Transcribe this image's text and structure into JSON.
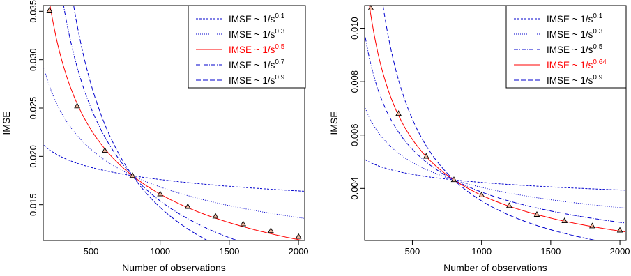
{
  "chart_data": [
    {
      "type": "line",
      "title": "",
      "xlabel": "Number of observations",
      "ylabel": "IMSE",
      "xlim": [
        155,
        2045
      ],
      "ylim": [
        0.0113,
        0.0356
      ],
      "xticks": [
        500,
        1000,
        1500,
        2000
      ],
      "xtick_labels": [
        "500",
        "1000",
        "1500",
        "2000"
      ],
      "yticks": [
        0.015,
        0.02,
        0.025,
        0.03,
        0.035
      ],
      "ytick_labels": [
        "0.015",
        "0.020",
        "0.025",
        "0.030",
        "0.035"
      ],
      "legend_position": "top-right",
      "legend": [
        {
          "text": "IMSE ~ 1/s",
          "exponent": "0.1",
          "color": "#0000cd",
          "dash": "3,2",
          "highlight": false
        },
        {
          "text": "IMSE ~ 1/s",
          "exponent": "0.3",
          "color": "#0000cd",
          "dash": "1,2",
          "highlight": false
        },
        {
          "text": "IMSE ~ 1/s",
          "exponent": "0.5",
          "color": "#ff0000",
          "dash": "",
          "highlight": true
        },
        {
          "text": "IMSE ~ 1/s",
          "exponent": "0.7",
          "color": "#0000cd",
          "dash": "6,2,1,2",
          "highlight": false
        },
        {
          "text": "IMSE ~ 1/s",
          "exponent": "0.9",
          "color": "#0000cd",
          "dash": "7,3",
          "highlight": false
        }
      ],
      "points": {
        "x": [
          200,
          400,
          600,
          800,
          1000,
          1200,
          1400,
          1600,
          1800,
          2000
        ],
        "y": [
          0.0351,
          0.0252,
          0.0206,
          0.018,
          0.0161,
          0.0148,
          0.0138,
          0.013,
          0.0123,
          0.0117
        ]
      }
    },
    {
      "type": "line",
      "title": "",
      "xlabel": "Number of observations",
      "ylabel": "IMSE",
      "xlim": [
        155,
        2045
      ],
      "ylim": [
        0.00205,
        0.01085
      ],
      "xticks": [
        500,
        1000,
        1500,
        2000
      ],
      "xtick_labels": [
        "500",
        "1000",
        "1500",
        "2000"
      ],
      "yticks": [
        0.004,
        0.006,
        0.008,
        0.01
      ],
      "ytick_labels": [
        "0.004",
        "0.006",
        "0.008",
        "0.010"
      ],
      "legend_position": "top-right",
      "legend": [
        {
          "text": "IMSE ~ 1/s",
          "exponent": "0.1",
          "color": "#0000cd",
          "dash": "3,2",
          "highlight": false
        },
        {
          "text": "IMSE ~ 1/s",
          "exponent": "0.3",
          "color": "#0000cd",
          "dash": "1,2",
          "highlight": false
        },
        {
          "text": "IMSE ~ 1/s",
          "exponent": "0.5",
          "color": "#0000cd",
          "dash": "6,2,1,2",
          "highlight": false
        },
        {
          "text": "IMSE ~ 1/s",
          "exponent": "0.64",
          "color": "#ff0000",
          "dash": "",
          "highlight": true
        },
        {
          "text": "IMSE ~ 1/s",
          "exponent": "0.9",
          "color": "#0000cd",
          "dash": "7,3",
          "highlight": false
        }
      ],
      "points": {
        "x": [
          200,
          400,
          600,
          800,
          1000,
          1200,
          1400,
          1600,
          1800,
          2000
        ],
        "y": [
          0.01075,
          0.0068,
          0.0052,
          0.00432,
          0.00375,
          0.00335,
          0.00302,
          0.00278,
          0.00259,
          0.00243
        ]
      }
    }
  ]
}
